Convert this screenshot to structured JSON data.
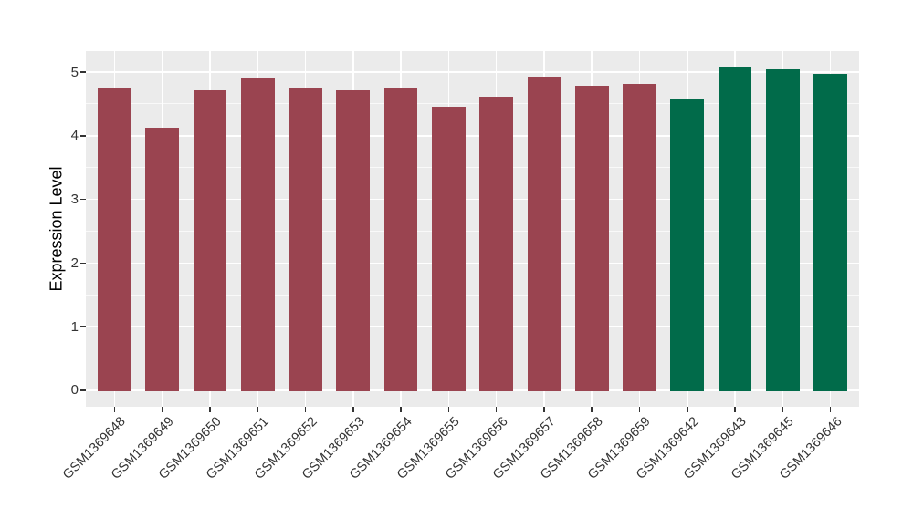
{
  "chart_data": {
    "type": "bar",
    "title": "",
    "xlabel": "",
    "ylabel": "Expression Level",
    "categories": [
      "GSM1369648",
      "GSM1369649",
      "GSM1369650",
      "GSM1369651",
      "GSM1369652",
      "GSM1369653",
      "GSM1369654",
      "GSM1369655",
      "GSM1369656",
      "GSM1369657",
      "GSM1369658",
      "GSM1369659",
      "GSM1369642",
      "GSM1369643",
      "GSM1369645",
      "GSM1369646"
    ],
    "values": [
      4.74,
      4.13,
      4.71,
      4.92,
      4.74,
      4.71,
      4.74,
      4.45,
      4.62,
      4.93,
      4.78,
      4.81,
      4.57,
      5.08,
      5.04,
      4.97
    ],
    "bar_colors": [
      "#9A4450",
      "#9A4450",
      "#9A4450",
      "#9A4450",
      "#9A4450",
      "#9A4450",
      "#9A4450",
      "#9A4450",
      "#9A4450",
      "#9A4450",
      "#9A4450",
      "#9A4450",
      "#016B4A",
      "#016B4A",
      "#016B4A",
      "#016B4A"
    ],
    "groups": [
      {
        "name": "red-group",
        "color": "#9A4450",
        "samples": [
          "GSM1369648",
          "GSM1369649",
          "GSM1369650",
          "GSM1369651",
          "GSM1369652",
          "GSM1369653",
          "GSM1369654",
          "GSM1369655",
          "GSM1369656",
          "GSM1369657",
          "GSM1369658",
          "GSM1369659"
        ]
      },
      {
        "name": "green-group",
        "color": "#016B4A",
        "samples": [
          "GSM1369642",
          "GSM1369643",
          "GSM1369645",
          "GSM1369646"
        ]
      }
    ],
    "yticks": [
      0,
      1,
      2,
      3,
      4,
      5
    ],
    "ylim": [
      -0.26,
      5.33
    ],
    "bar_width_fraction": 0.7,
    "legend_position": "none",
    "grid": {
      "panel_bg": "#EBEBEB",
      "major_color": "#FFFFFF",
      "minor_color": "#FFFFFF"
    }
  },
  "styles": {
    "page_bg": "#FFFFFF",
    "axis_text_color": "#333333",
    "axis_title_color": "#000000",
    "tick_mark_color": "#333333"
  }
}
